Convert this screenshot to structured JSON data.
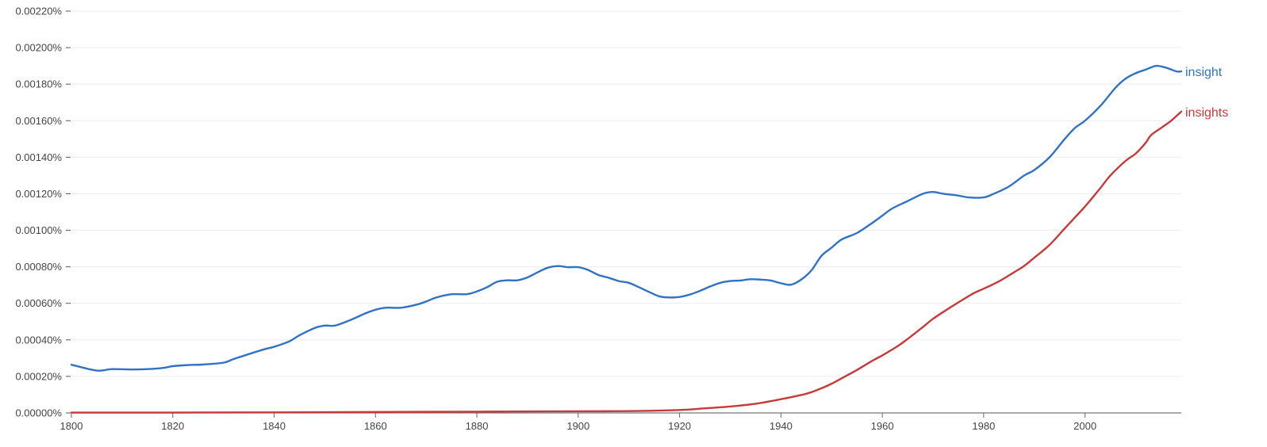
{
  "chart_data": {
    "type": "line",
    "title": "",
    "xlabel": "",
    "ylabel": "",
    "xlim": [
      1800,
      2019
    ],
    "ylim": [
      0,
      0.0022
    ],
    "x_ticks": [
      1800,
      1820,
      1840,
      1860,
      1880,
      1900,
      1920,
      1940,
      1960,
      1980,
      2000
    ],
    "x_tick_labels": [
      "1800",
      "1820",
      "1840",
      "1860",
      "1880",
      "1900",
      "1920",
      "1940",
      "1960",
      "1980",
      "2000"
    ],
    "y_ticks": [
      0,
      0.0002,
      0.0004,
      0.0006,
      0.0008,
      0.001,
      0.0012,
      0.0014,
      0.0016,
      0.0018,
      0.002,
      0.0022
    ],
    "y_tick_labels": [
      "0.00000%",
      "0.00020%",
      "0.00040%",
      "0.00060%",
      "0.00080%",
      "0.00100%",
      "0.00120%",
      "0.00140%",
      "0.00160%",
      "0.00180%",
      "0.00200%",
      "0.00220%"
    ],
    "grid": true,
    "series": [
      {
        "name": "insight",
        "color": "#3172c4",
        "points": [
          [
            1800,
            0.000264
          ],
          [
            1805,
            0.000232
          ],
          [
            1808,
            0.00024
          ],
          [
            1812,
            0.000238
          ],
          [
            1815,
            0.00024
          ],
          [
            1818,
            0.000246
          ],
          [
            1820,
            0.000256
          ],
          [
            1823,
            0.000262
          ],
          [
            1826,
            0.000265
          ],
          [
            1830,
            0.000275
          ],
          [
            1832,
            0.000295
          ],
          [
            1835,
            0.000322
          ],
          [
            1838,
            0.000348
          ],
          [
            1840,
            0.000362
          ],
          [
            1843,
            0.000392
          ],
          [
            1845,
            0.000425
          ],
          [
            1848,
            0.000465
          ],
          [
            1850,
            0.000478
          ],
          [
            1852,
            0.000478
          ],
          [
            1855,
            0.000508
          ],
          [
            1858,
            0.000545
          ],
          [
            1860,
            0.000565
          ],
          [
            1862,
            0.000576
          ],
          [
            1865,
            0.000576
          ],
          [
            1868,
            0.000592
          ],
          [
            1870,
            0.00061
          ],
          [
            1872,
            0.000632
          ],
          [
            1875,
            0.00065
          ],
          [
            1878,
            0.00065
          ],
          [
            1880,
            0.000665
          ],
          [
            1882,
            0.000688
          ],
          [
            1884,
            0.000718
          ],
          [
            1886,
            0.000726
          ],
          [
            1888,
            0.000726
          ],
          [
            1890,
            0.000742
          ],
          [
            1892,
            0.00077
          ],
          [
            1894,
            0.000795
          ],
          [
            1896,
            0.000804
          ],
          [
            1898,
            0.000798
          ],
          [
            1900,
            0.000798
          ],
          [
            1902,
            0.000782
          ],
          [
            1904,
            0.000755
          ],
          [
            1906,
            0.00074
          ],
          [
            1908,
            0.000722
          ],
          [
            1910,
            0.000712
          ],
          [
            1912,
            0.000688
          ],
          [
            1914,
            0.000662
          ],
          [
            1916,
            0.000638
          ],
          [
            1918,
            0.000632
          ],
          [
            1920,
            0.000635
          ],
          [
            1922,
            0.000648
          ],
          [
            1924,
            0.000668
          ],
          [
            1926,
            0.000692
          ],
          [
            1928,
            0.000712
          ],
          [
            1930,
            0.000722
          ],
          [
            1932,
            0.000725
          ],
          [
            1934,
            0.000732
          ],
          [
            1936,
            0.00073
          ],
          [
            1938,
            0.000725
          ],
          [
            1940,
            0.00071
          ],
          [
            1942,
            0.000702
          ],
          [
            1944,
            0.00073
          ],
          [
            1946,
            0.00078
          ],
          [
            1948,
            0.00086
          ],
          [
            1950,
            0.000905
          ],
          [
            1952,
            0.00095
          ],
          [
            1955,
            0.000985
          ],
          [
            1958,
            0.00104
          ],
          [
            1960,
            0.00108
          ],
          [
            1962,
            0.00112
          ],
          [
            1965,
            0.00116
          ],
          [
            1968,
            0.0012
          ],
          [
            1970,
            0.00121
          ],
          [
            1972,
            0.0012
          ],
          [
            1975,
            0.00119
          ],
          [
            1977,
            0.00118
          ],
          [
            1980,
            0.00118
          ],
          [
            1982,
            0.0012
          ],
          [
            1985,
            0.00124
          ],
          [
            1988,
            0.0013
          ],
          [
            1990,
            0.00133
          ],
          [
            1993,
            0.0014
          ],
          [
            1996,
            0.0015
          ],
          [
            1998,
            0.00156
          ],
          [
            2000,
            0.0016
          ],
          [
            2003,
            0.00168
          ],
          [
            2006,
            0.00178
          ],
          [
            2008,
            0.00183
          ],
          [
            2010,
            0.00186
          ],
          [
            2012,
            0.00188
          ],
          [
            2014,
            0.0019
          ],
          [
            2016,
            0.00189
          ],
          [
            2018,
            0.00187
          ],
          [
            2019,
            0.00187
          ]
        ]
      },
      {
        "name": "insights",
        "color": "#c53a3a",
        "points": [
          [
            1800,
            2e-06
          ],
          [
            1820,
            2e-06
          ],
          [
            1840,
            3e-06
          ],
          [
            1860,
            5e-06
          ],
          [
            1880,
            7e-06
          ],
          [
            1900,
            9e-06
          ],
          [
            1910,
            1e-05
          ],
          [
            1920,
            1.6e-05
          ],
          [
            1925,
            2.5e-05
          ],
          [
            1930,
            3.5e-05
          ],
          [
            1935,
            5e-05
          ],
          [
            1940,
            7.5e-05
          ],
          [
            1945,
            0.000105
          ],
          [
            1948,
            0.000135
          ],
          [
            1950,
            0.00016
          ],
          [
            1953,
            0.000205
          ],
          [
            1955,
            0.000235
          ],
          [
            1958,
            0.000285
          ],
          [
            1960,
            0.000315
          ],
          [
            1963,
            0.000365
          ],
          [
            1965,
            0.000405
          ],
          [
            1968,
            0.00047
          ],
          [
            1970,
            0.000515
          ],
          [
            1973,
            0.00057
          ],
          [
            1975,
            0.000605
          ],
          [
            1978,
            0.000655
          ],
          [
            1980,
            0.00068
          ],
          [
            1983,
            0.00072
          ],
          [
            1986,
            0.00077
          ],
          [
            1988,
            0.000805
          ],
          [
            1990,
            0.00085
          ],
          [
            1993,
            0.00092
          ],
          [
            1996,
            0.00101
          ],
          [
            1998,
            0.00107
          ],
          [
            2000,
            0.00113
          ],
          [
            2003,
            0.00123
          ],
          [
            2005,
            0.0013
          ],
          [
            2008,
            0.00138
          ],
          [
            2010,
            0.00142
          ],
          [
            2012,
            0.00148
          ],
          [
            2013,
            0.00152
          ],
          [
            2015,
            0.00156
          ],
          [
            2017,
            0.0016
          ],
          [
            2019,
            0.00165
          ]
        ]
      }
    ]
  }
}
